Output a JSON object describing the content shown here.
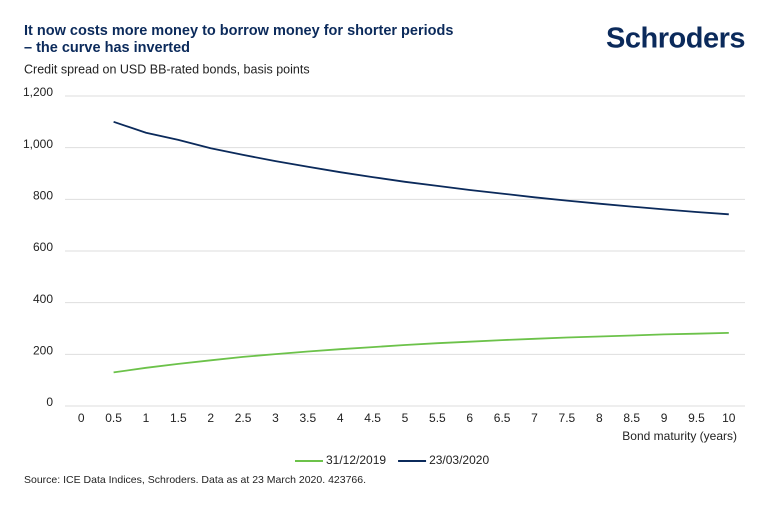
{
  "chart_data": {
    "type": "line",
    "title": [
      "It now costs more money to borrow money for shorter periods",
      "– the curve has inverted"
    ],
    "logo": "Schroders",
    "subtitle": "Credit spread on USD BB-rated bonds, basis points",
    "x_label": "Bond maturity (years)",
    "source": "Source: ICE Data Indices, Schroders. Data as at 23 March 2020. 423766.",
    "x": [
      0.5,
      1,
      1.5,
      2,
      2.5,
      3,
      3.5,
      4,
      4.5,
      5,
      5.5,
      6,
      6.5,
      7,
      7.5,
      8,
      8.5,
      9,
      9.5,
      10
    ],
    "series": [
      {
        "name": "31/12/2019",
        "color": "#6cc24a",
        "values": [
          130,
          148,
          163,
          177,
          190,
          201,
          211,
          220,
          228,
          236,
          243,
          249,
          255,
          260,
          265,
          269,
          273,
          277,
          280,
          283
        ]
      },
      {
        "name": "23/03/2020",
        "color": "#0b2a5b",
        "values": [
          1100,
          1058,
          1030,
          998,
          972,
          948,
          926,
          905,
          886,
          868,
          852,
          836,
          822,
          808,
          795,
          783,
          772,
          761,
          751,
          742
        ]
      }
    ],
    "xlim": [
      -0.25,
      10.25
    ],
    "xticks": [
      0,
      0.5,
      1,
      1.5,
      2,
      2.5,
      3,
      3.5,
      4,
      4.5,
      5,
      5.5,
      6,
      6.5,
      7,
      7.5,
      8,
      8.5,
      9,
      9.5,
      10
    ],
    "ylim": [
      0,
      1200
    ],
    "yticks": [
      0,
      200,
      400,
      600,
      800,
      {
        "value": 1000,
        "label": "1,000"
      },
      {
        "value": 1200,
        "label": "1,200"
      }
    ],
    "grid": true
  }
}
